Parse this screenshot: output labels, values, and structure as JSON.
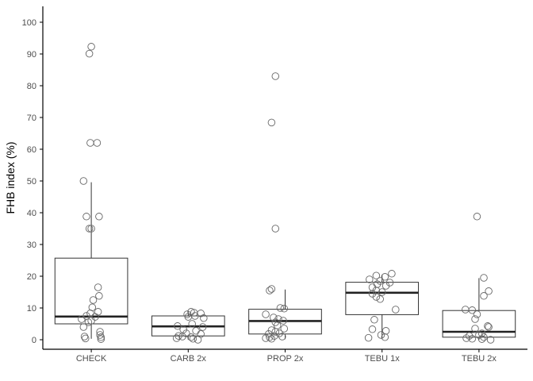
{
  "chart_data": {
    "type": "box",
    "title": "",
    "xlabel": "",
    "ylabel": "FHB index (%)",
    "ylim": [
      -3,
      105
    ],
    "yticks": [
      0,
      10,
      20,
      30,
      40,
      50,
      60,
      70,
      80,
      90,
      100
    ],
    "grid": false,
    "categories": [
      "CHECK",
      "CARB 2x",
      "PROP 2x",
      "TEBU 1x",
      "TEBU 2x"
    ],
    "boxes": [
      {
        "category": "CHECK",
        "q1": 5.0,
        "median": 7.3,
        "q3": 25.7,
        "whisker_low": 0.3,
        "whisker_high": 49.6
      },
      {
        "category": "CARB 2x",
        "q1": 1.2,
        "median": 4.2,
        "q3": 7.5,
        "whisker_low": 0.0,
        "whisker_high": 9.0
      },
      {
        "category": "PROP 2x",
        "q1": 1.8,
        "median": 5.9,
        "q3": 9.6,
        "whisker_low": 0.2,
        "whisker_high": 15.8
      },
      {
        "category": "TEBU 1x",
        "q1": 7.9,
        "median": 14.8,
        "q3": 18.1,
        "whisker_low": 0.6,
        "whisker_high": 20.5
      },
      {
        "category": "TEBU 2x",
        "q1": 0.8,
        "median": 2.5,
        "q3": 9.2,
        "whisker_low": 0.0,
        "whisker_high": 19.4
      }
    ],
    "points": [
      {
        "category": "CHECK",
        "jitter": 0.0,
        "values": [
          92.3
        ]
      },
      {
        "category": "CHECK",
        "jitter": -0.02,
        "values": [
          90.1
        ]
      },
      {
        "category": "CHECK",
        "jitter": -0.01,
        "values": [
          62.0
        ]
      },
      {
        "category": "CHECK",
        "jitter": 0.06,
        "values": [
          62.0
        ]
      },
      {
        "category": "CHECK",
        "jitter": -0.08,
        "values": [
          50.0
        ]
      },
      {
        "category": "CHECK",
        "jitter": -0.05,
        "values": [
          38.8
        ]
      },
      {
        "category": "CHECK",
        "jitter": 0.08,
        "values": [
          38.8
        ]
      },
      {
        "category": "CHECK",
        "jitter": -0.02,
        "values": [
          35.0
        ]
      },
      {
        "category": "CHECK",
        "jitter": 0.0,
        "values": [
          35.0
        ]
      },
      {
        "category": "CHECK",
        "jitter": 0.07,
        "values": [
          16.5
        ]
      },
      {
        "category": "CHECK",
        "jitter": 0.08,
        "values": [
          13.8
        ]
      },
      {
        "category": "CHECK",
        "jitter": 0.02,
        "values": [
          12.5
        ]
      },
      {
        "category": "CHECK",
        "jitter": 0.01,
        "values": [
          10.2
        ]
      },
      {
        "category": "CHECK",
        "jitter": 0.07,
        "values": [
          8.8
        ]
      },
      {
        "category": "CHECK",
        "jitter": -0.01,
        "values": [
          8.3
        ]
      },
      {
        "category": "CHECK",
        "jitter": -0.05,
        "values": [
          7.5
        ]
      },
      {
        "category": "CHECK",
        "jitter": 0.04,
        "values": [
          7.2
        ]
      },
      {
        "category": "CHECK",
        "jitter": -0.1,
        "values": [
          6.5
        ]
      },
      {
        "category": "CHECK",
        "jitter": 0.0,
        "values": [
          6.0
        ]
      },
      {
        "category": "CHECK",
        "jitter": -0.03,
        "values": [
          5.5
        ]
      },
      {
        "category": "CHECK",
        "jitter": -0.08,
        "values": [
          4.0
        ]
      },
      {
        "category": "CHECK",
        "jitter": 0.09,
        "values": [
          2.5
        ]
      },
      {
        "category": "CHECK",
        "jitter": 0.09,
        "values": [
          1.5
        ]
      },
      {
        "category": "CHECK",
        "jitter": -0.07,
        "values": [
          1.0
        ]
      },
      {
        "category": "CHECK",
        "jitter": 0.1,
        "values": [
          0.8
        ]
      },
      {
        "category": "CHECK",
        "jitter": -0.06,
        "values": [
          0.4
        ]
      },
      {
        "category": "CHECK",
        "jitter": 0.1,
        "values": [
          0.2
        ]
      },
      {
        "category": "CARB 2x",
        "jitter": 0.03,
        "values": [
          8.8
        ]
      },
      {
        "category": "CARB 2x",
        "jitter": 0.06,
        "values": [
          8.5
        ]
      },
      {
        "category": "CARB 2x",
        "jitter": 0.13,
        "values": [
          8.3
        ]
      },
      {
        "category": "CARB 2x",
        "jitter": -0.01,
        "values": [
          8.0
        ]
      },
      {
        "category": "CARB 2x",
        "jitter": 0.07,
        "values": [
          7.5
        ]
      },
      {
        "category": "CARB 2x",
        "jitter": 0.0,
        "values": [
          7.2
        ]
      },
      {
        "category": "CARB 2x",
        "jitter": 0.16,
        "values": [
          6.8
        ]
      },
      {
        "category": "CARB 2x",
        "jitter": 0.04,
        "values": [
          5.0
        ]
      },
      {
        "category": "CARB 2x",
        "jitter": -0.11,
        "values": [
          4.3
        ]
      },
      {
        "category": "CARB 2x",
        "jitter": 0.15,
        "values": [
          4.0
        ]
      },
      {
        "category": "CARB 2x",
        "jitter": -0.05,
        "values": [
          3.2
        ]
      },
      {
        "category": "CARB 2x",
        "jitter": 0.08,
        "values": [
          2.8
        ]
      },
      {
        "category": "CARB 2x",
        "jitter": -0.02,
        "values": [
          2.0
        ]
      },
      {
        "category": "CARB 2x",
        "jitter": 0.13,
        "values": [
          1.8
        ]
      },
      {
        "category": "CARB 2x",
        "jitter": -0.1,
        "values": [
          1.2
        ]
      },
      {
        "category": "CARB 2x",
        "jitter": -0.06,
        "values": [
          1.0
        ]
      },
      {
        "category": "CARB 2x",
        "jitter": 0.03,
        "values": [
          0.8
        ]
      },
      {
        "category": "CARB 2x",
        "jitter": -0.12,
        "values": [
          0.5
        ]
      },
      {
        "category": "CARB 2x",
        "jitter": 0.05,
        "values": [
          0.3
        ]
      },
      {
        "category": "CARB 2x",
        "jitter": 0.1,
        "values": [
          0.0
        ]
      },
      {
        "category": "PROP 2x",
        "jitter": -0.1,
        "values": [
          83.0
        ]
      },
      {
        "category": "PROP 2x",
        "jitter": -0.14,
        "values": [
          68.4
        ]
      },
      {
        "category": "PROP 2x",
        "jitter": -0.1,
        "values": [
          35.0
        ]
      },
      {
        "category": "PROP 2x",
        "jitter": -0.14,
        "values": [
          16.0
        ]
      },
      {
        "category": "PROP 2x",
        "jitter": -0.16,
        "values": [
          15.5
        ]
      },
      {
        "category": "PROP 2x",
        "jitter": -0.05,
        "values": [
          10.0
        ]
      },
      {
        "category": "PROP 2x",
        "jitter": -0.01,
        "values": [
          9.8
        ]
      },
      {
        "category": "PROP 2x",
        "jitter": -0.2,
        "values": [
          8.0
        ]
      },
      {
        "category": "PROP 2x",
        "jitter": -0.12,
        "values": [
          7.0
        ]
      },
      {
        "category": "PROP 2x",
        "jitter": -0.07,
        "values": [
          6.5
        ]
      },
      {
        "category": "PROP 2x",
        "jitter": -0.02,
        "values": [
          6.0
        ]
      },
      {
        "category": "PROP 2x",
        "jitter": -0.1,
        "values": [
          5.5
        ]
      },
      {
        "category": "PROP 2x",
        "jitter": -0.08,
        "values": [
          4.5
        ]
      },
      {
        "category": "PROP 2x",
        "jitter": -0.01,
        "values": [
          3.5
        ]
      },
      {
        "category": "PROP 2x",
        "jitter": -0.14,
        "values": [
          3.0
        ]
      },
      {
        "category": "PROP 2x",
        "jitter": -0.1,
        "values": [
          2.5
        ]
      },
      {
        "category": "PROP 2x",
        "jitter": -0.06,
        "values": [
          2.0
        ]
      },
      {
        "category": "PROP 2x",
        "jitter": -0.17,
        "values": [
          1.8
        ]
      },
      {
        "category": "PROP 2x",
        "jitter": -0.11,
        "values": [
          1.2
        ]
      },
      {
        "category": "PROP 2x",
        "jitter": -0.03,
        "values": [
          1.0
        ]
      },
      {
        "category": "PROP 2x",
        "jitter": -0.16,
        "values": [
          0.8
        ]
      },
      {
        "category": "PROP 2x",
        "jitter": -0.2,
        "values": [
          0.5
        ]
      },
      {
        "category": "PROP 2x",
        "jitter": -0.14,
        "values": [
          0.3
        ]
      },
      {
        "category": "TEBU 1x",
        "jitter": 0.1,
        "values": [
          20.8
        ]
      },
      {
        "category": "TEBU 1x",
        "jitter": -0.06,
        "values": [
          20.2
        ]
      },
      {
        "category": "TEBU 1x",
        "jitter": 0.03,
        "values": [
          19.8
        ]
      },
      {
        "category": "TEBU 1x",
        "jitter": -0.13,
        "values": [
          19.0
        ]
      },
      {
        "category": "TEBU 1x",
        "jitter": -0.02,
        "values": [
          18.5
        ]
      },
      {
        "category": "TEBU 1x",
        "jitter": 0.08,
        "values": [
          18.0
        ]
      },
      {
        "category": "TEBU 1x",
        "jitter": -0.05,
        "values": [
          17.5
        ]
      },
      {
        "category": "TEBU 1x",
        "jitter": 0.04,
        "values": [
          17.0
        ]
      },
      {
        "category": "TEBU 1x",
        "jitter": -0.1,
        "values": [
          16.5
        ]
      },
      {
        "category": "TEBU 1x",
        "jitter": -0.06,
        "values": [
          15.5
        ]
      },
      {
        "category": "TEBU 1x",
        "jitter": 0.0,
        "values": [
          15.0
        ]
      },
      {
        "category": "TEBU 1x",
        "jitter": -0.1,
        "values": [
          14.5
        ]
      },
      {
        "category": "TEBU 1x",
        "jitter": -0.06,
        "values": [
          13.5
        ]
      },
      {
        "category": "TEBU 1x",
        "jitter": -0.02,
        "values": [
          12.8
        ]
      },
      {
        "category": "TEBU 1x",
        "jitter": 0.14,
        "values": [
          9.5
        ]
      },
      {
        "category": "TEBU 1x",
        "jitter": -0.08,
        "values": [
          6.3
        ]
      },
      {
        "category": "TEBU 1x",
        "jitter": -0.1,
        "values": [
          3.3
        ]
      },
      {
        "category": "TEBU 1x",
        "jitter": 0.04,
        "values": [
          2.8
        ]
      },
      {
        "category": "TEBU 1x",
        "jitter": -0.01,
        "values": [
          1.5
        ]
      },
      {
        "category": "TEBU 1x",
        "jitter": 0.03,
        "values": [
          0.8
        ]
      },
      {
        "category": "TEBU 1x",
        "jitter": -0.14,
        "values": [
          0.6
        ]
      },
      {
        "category": "TEBU 2x",
        "jitter": -0.02,
        "values": [
          38.8
        ]
      },
      {
        "category": "TEBU 2x",
        "jitter": 0.05,
        "values": [
          19.5
        ]
      },
      {
        "category": "TEBU 2x",
        "jitter": 0.1,
        "values": [
          15.3
        ]
      },
      {
        "category": "TEBU 2x",
        "jitter": 0.05,
        "values": [
          13.8
        ]
      },
      {
        "category": "TEBU 2x",
        "jitter": -0.14,
        "values": [
          9.5
        ]
      },
      {
        "category": "TEBU 2x",
        "jitter": -0.07,
        "values": [
          9.3
        ]
      },
      {
        "category": "TEBU 2x",
        "jitter": -0.02,
        "values": [
          8.0
        ]
      },
      {
        "category": "TEBU 2x",
        "jitter": -0.04,
        "values": [
          6.5
        ]
      },
      {
        "category": "TEBU 2x",
        "jitter": 0.09,
        "values": [
          4.3
        ]
      },
      {
        "category": "TEBU 2x",
        "jitter": 0.1,
        "values": [
          4.0
        ]
      },
      {
        "category": "TEBU 2x",
        "jitter": -0.04,
        "values": [
          3.5
        ]
      },
      {
        "category": "TEBU 2x",
        "jitter": 0.03,
        "values": [
          2.0
        ]
      },
      {
        "category": "TEBU 2x",
        "jitter": 0.0,
        "values": [
          1.5
        ]
      },
      {
        "category": "TEBU 2x",
        "jitter": -0.1,
        "values": [
          1.2
        ]
      },
      {
        "category": "TEBU 2x",
        "jitter": 0.05,
        "values": [
          0.8
        ]
      },
      {
        "category": "TEBU 2x",
        "jitter": -0.13,
        "values": [
          0.5
        ]
      },
      {
        "category": "TEBU 2x",
        "jitter": -0.07,
        "values": [
          0.3
        ]
      },
      {
        "category": "TEBU 2x",
        "jitter": 0.03,
        "values": [
          0.2
        ]
      },
      {
        "category": "TEBU 2x",
        "jitter": 0.12,
        "values": [
          0.0
        ]
      }
    ],
    "colors": {
      "box_line": "#333333",
      "median_line": "#222222",
      "point_stroke": "#666666",
      "axis": "#000000"
    }
  }
}
